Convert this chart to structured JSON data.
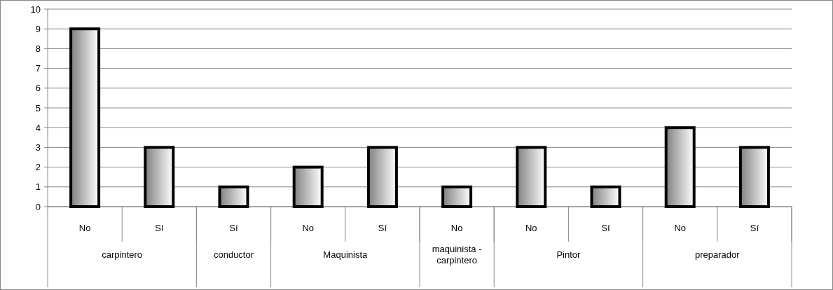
{
  "chart_data": {
    "type": "bar",
    "categories": [
      "No",
      "Sí",
      "Sí",
      "No",
      "Sí",
      "No",
      "No",
      "Sí",
      "No",
      "Sí"
    ],
    "values": [
      9,
      3,
      1,
      2,
      3,
      1,
      3,
      1,
      4,
      3
    ],
    "color": "#000000",
    "ylim": [
      0,
      10
    ],
    "yticks": [
      0,
      1,
      2,
      3,
      4,
      5,
      6,
      7,
      8,
      9,
      10
    ],
    "grid": "y",
    "annotations": [
      "carpintero",
      "conductor",
      "Maquinista",
      "maquinista - carpintero",
      "Pintor",
      "preparador"
    ]
  }
}
